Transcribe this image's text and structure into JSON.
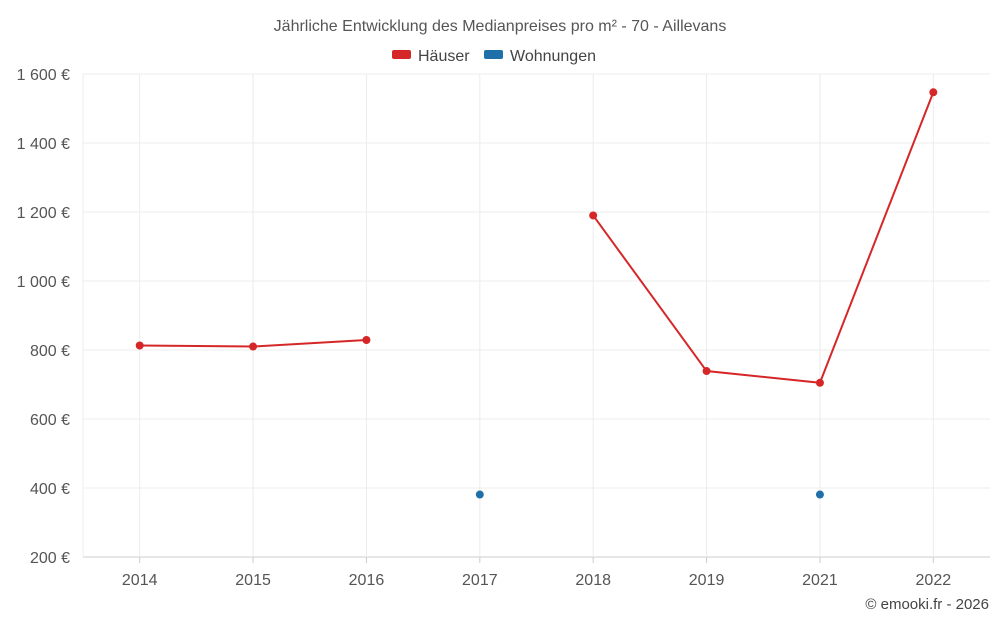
{
  "chart_data": {
    "type": "line",
    "title": "Jährliche Entwicklung des Medianpreises pro m² - 70 - Aillevans",
    "categories": [
      "2014",
      "2015",
      "2016",
      "2017",
      "2018",
      "2019",
      "2021",
      "2022"
    ],
    "series": [
      {
        "name": "Häuser",
        "color": "#d62728",
        "values": [
          813,
          810,
          829,
          null,
          1190,
          739,
          705,
          1547
        ]
      },
      {
        "name": "Wohnungen",
        "color": "#1f6fa8",
        "values": [
          null,
          null,
          null,
          381,
          null,
          null,
          381,
          null
        ]
      }
    ],
    "yticks": [
      "200 €",
      "400 €",
      "600 €",
      "800 €",
      "1 000 €",
      "1 200 €",
      "1 400 €",
      "1 600 €"
    ],
    "ylim": [
      200,
      1600
    ],
    "grid": true,
    "legend": "top-center"
  },
  "credit": "© emooki.fr - 2026"
}
